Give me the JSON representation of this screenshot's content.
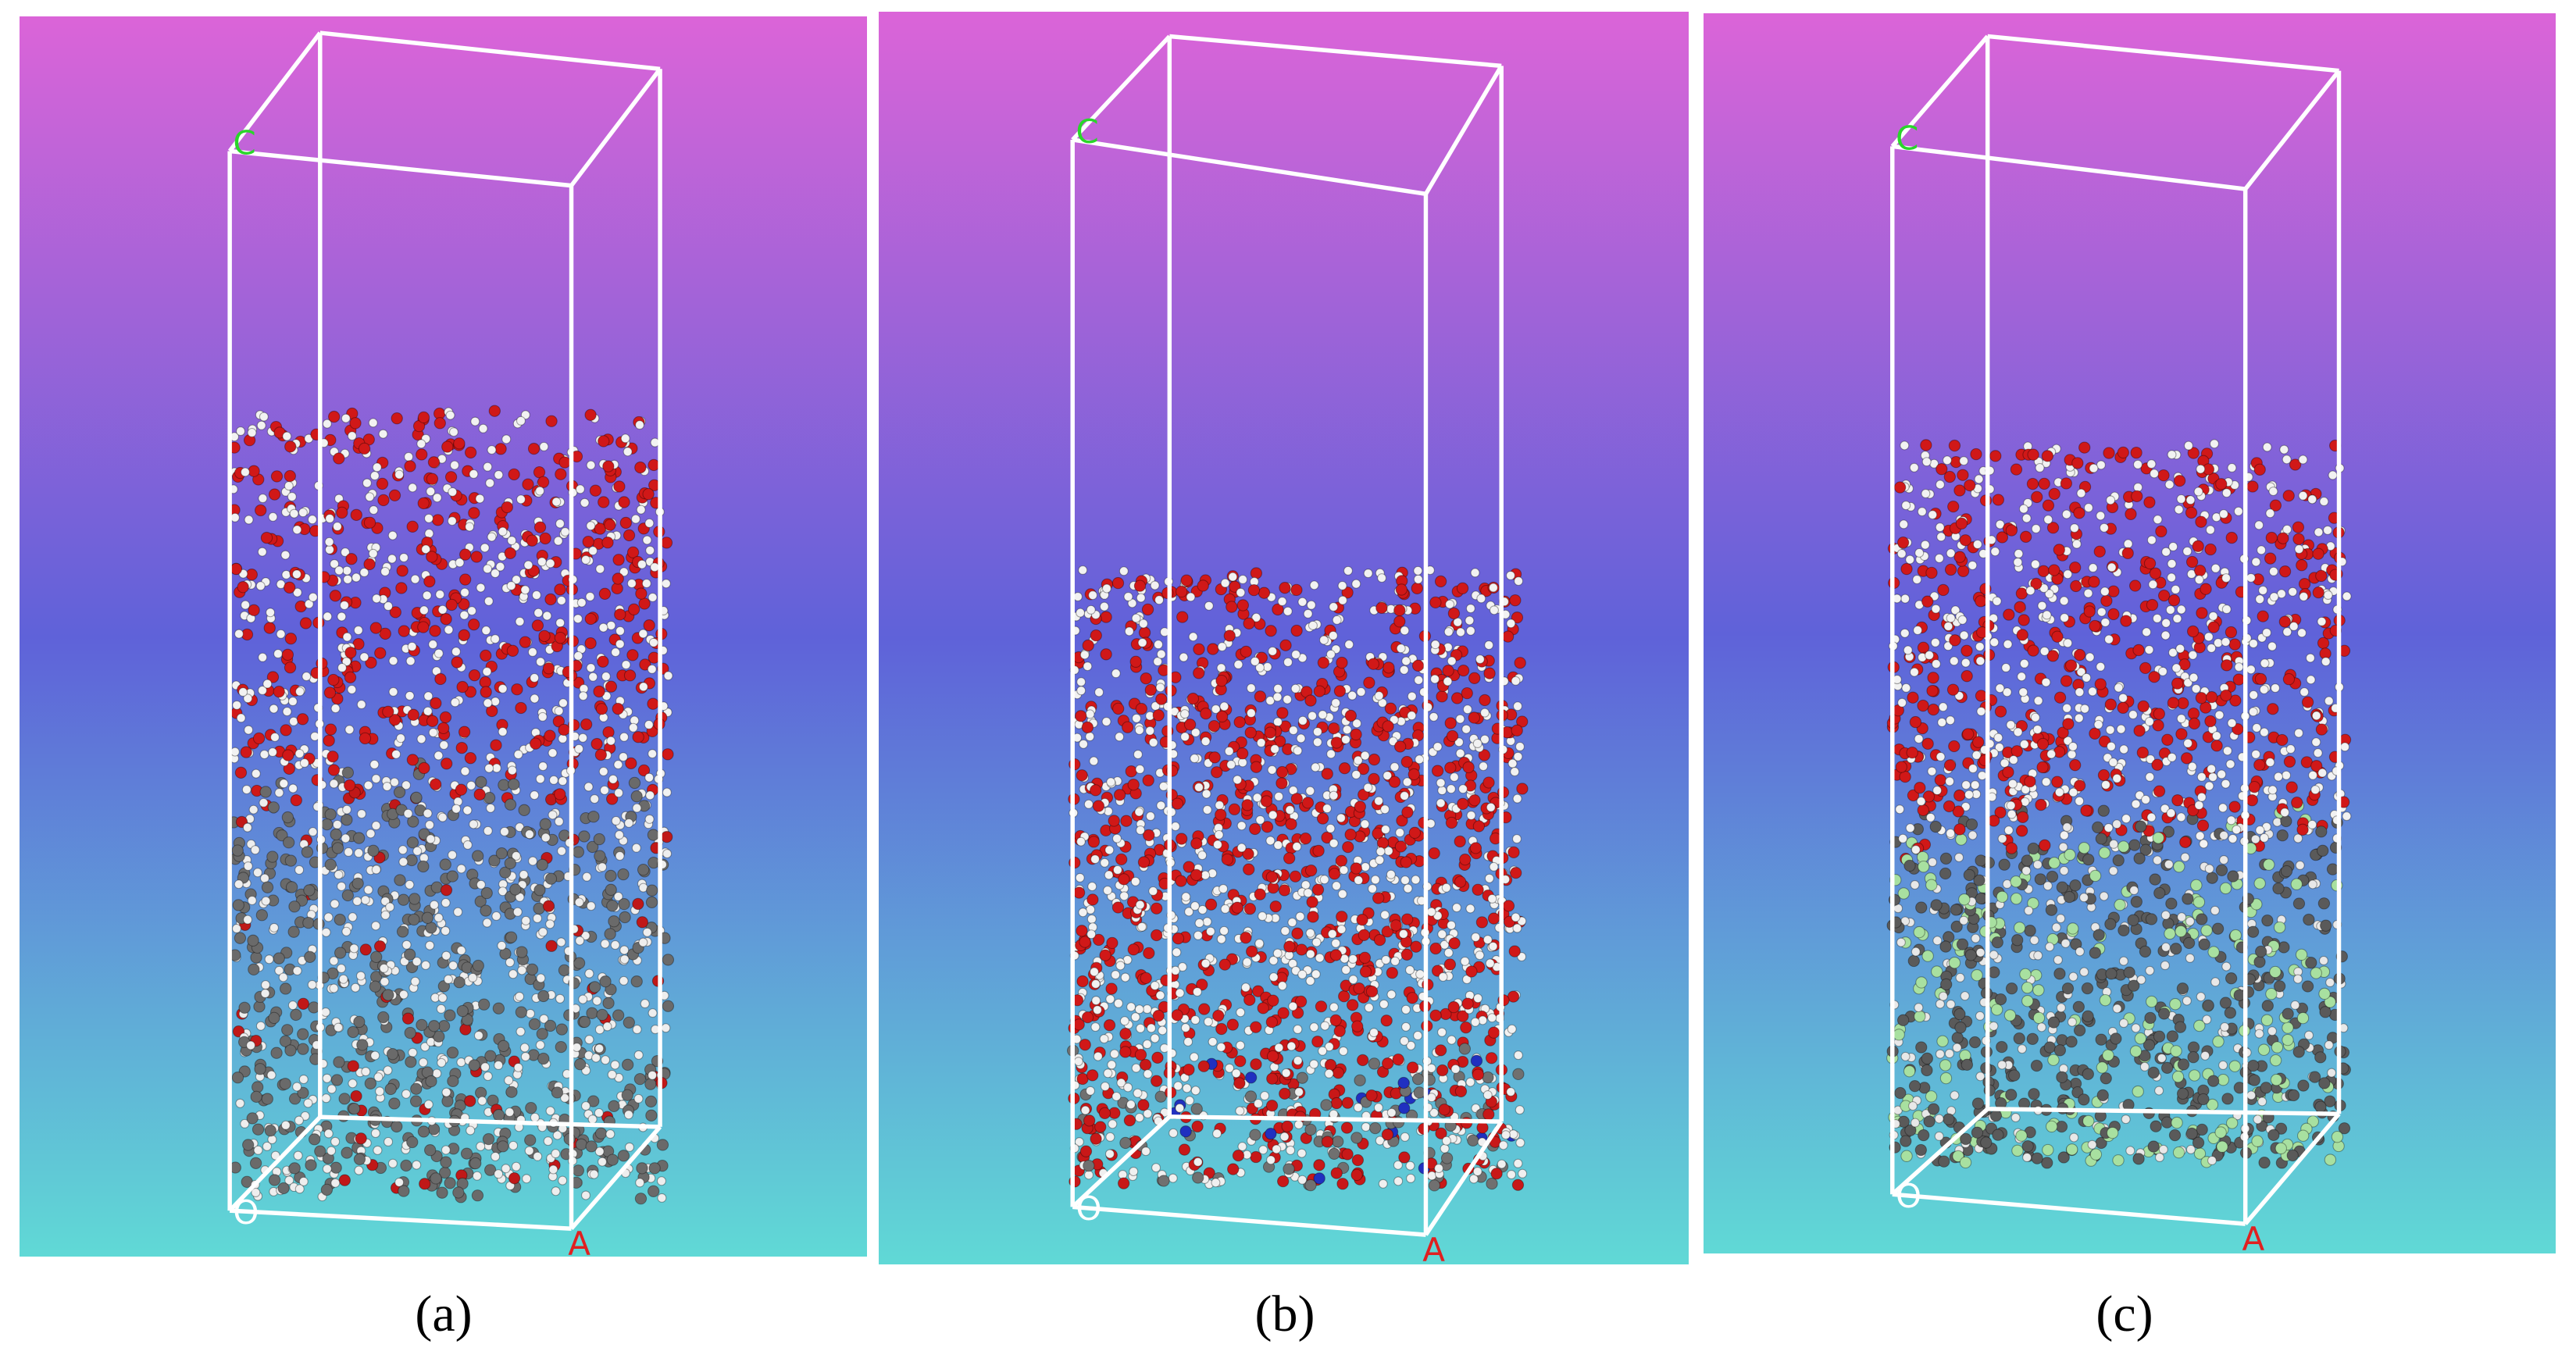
{
  "panels": [
    {
      "caption": "(a)",
      "axes": {
        "c": "C",
        "o": "O",
        "a": "A"
      }
    },
    {
      "caption": "(b)",
      "axes": {
        "c": "C",
        "o": "O",
        "a": "A"
      }
    },
    {
      "caption": "(c)",
      "axes": {
        "c": "C",
        "o": "O",
        "a": "A"
      }
    }
  ]
}
